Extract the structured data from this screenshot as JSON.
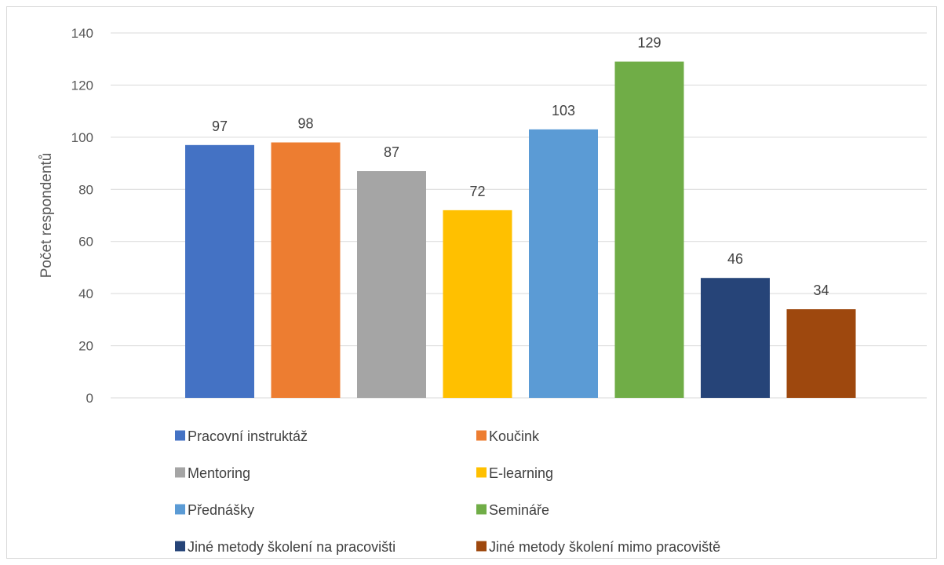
{
  "chart_data": {
    "type": "bar",
    "title": "",
    "xlabel": "",
    "ylabel": "Počet respondentů",
    "ylim": [
      0,
      140
    ],
    "yticks": [
      0,
      20,
      40,
      60,
      80,
      100,
      120,
      140
    ],
    "grid": true,
    "legend_position": "bottom",
    "categories": [
      "Pracovní instruktáž",
      "Koučink",
      "Mentoring",
      "E-learning",
      "Přednášky",
      "Semináře",
      "Jiné metody školení na pracovišti",
      "Jiné metody školení mimo pracoviště"
    ],
    "values": [
      97,
      98,
      87,
      72,
      103,
      129,
      46,
      34
    ],
    "colors": [
      "#4472c4",
      "#ed7d31",
      "#a5a5a5",
      "#ffc000",
      "#5b9bd5",
      "#70ad47",
      "#264478",
      "#9e480e"
    ]
  }
}
